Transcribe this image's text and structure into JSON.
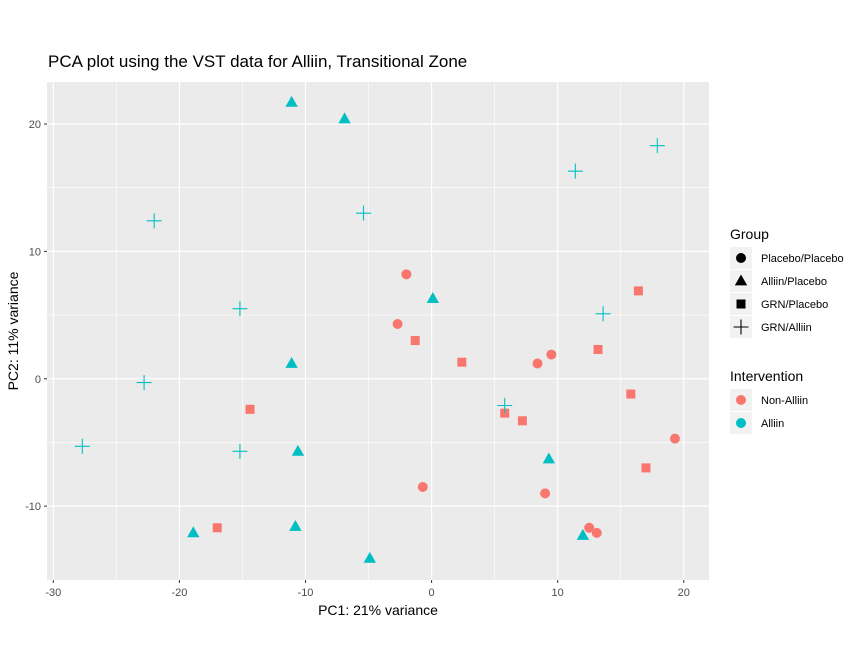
{
  "chart_data": {
    "type": "scatter",
    "title": "PCA plot using the VST data for Alliin, Transitional Zone",
    "xlabel": "PC1: 21% variance",
    "ylabel": "PC2: 11% variance",
    "xlim": [
      -30.5,
      22
    ],
    "ylim": [
      -15.8,
      23.3
    ],
    "x_ticks": [
      -30,
      -20,
      -10,
      0,
      10,
      20
    ],
    "y_ticks": [
      -10,
      0,
      10,
      20
    ],
    "x_tick_labels": [
      "-30",
      "-20",
      "-10",
      "0",
      "10",
      "20"
    ],
    "y_tick_labels": [
      "-10",
      "0",
      "10",
      "20"
    ],
    "grid": true,
    "legend_position": "right",
    "legends": {
      "shape": {
        "title": "Group",
        "items": [
          {
            "label": "Placebo/Placebo",
            "shape": "circle"
          },
          {
            "label": "Alliin/Placebo",
            "shape": "triangle"
          },
          {
            "label": "GRN/Placebo",
            "shape": "square"
          },
          {
            "label": "GRN/Alliin",
            "shape": "plus"
          }
        ]
      },
      "color": {
        "title": "Intervention",
        "items": [
          {
            "label": "Non-Alliin",
            "color": "#F8766D"
          },
          {
            "label": "Alliin",
            "color": "#00BFC4"
          }
        ]
      }
    },
    "series": [
      {
        "name": "Placebo/Placebo",
        "shape": "circle",
        "intervention": "Non-Alliin",
        "points": [
          [
            -2.0,
            8.2
          ],
          [
            -2.7,
            4.3
          ],
          [
            8.4,
            1.2
          ],
          [
            9.5,
            1.9
          ],
          [
            19.3,
            -4.7
          ],
          [
            -0.7,
            -8.5
          ],
          [
            9.0,
            -9.0
          ],
          [
            12.5,
            -11.7
          ],
          [
            13.1,
            -12.1
          ]
        ]
      },
      {
        "name": "Alliin/Placebo",
        "shape": "triangle",
        "intervention": "Alliin",
        "points": [
          [
            -11.1,
            21.7
          ],
          [
            -6.9,
            20.4
          ],
          [
            0.1,
            6.3
          ],
          [
            -11.1,
            1.2
          ],
          [
            -10.6,
            -5.7
          ],
          [
            9.3,
            -6.3
          ],
          [
            -18.9,
            -12.1
          ],
          [
            -10.8,
            -11.6
          ],
          [
            -4.9,
            -14.1
          ],
          [
            12.0,
            -12.3
          ]
        ]
      },
      {
        "name": "GRN/Placebo",
        "shape": "square",
        "intervention": "Non-Alliin",
        "points": [
          [
            16.4,
            6.9
          ],
          [
            -1.3,
            3.0
          ],
          [
            2.4,
            1.3
          ],
          [
            13.2,
            2.3
          ],
          [
            15.8,
            -1.2
          ],
          [
            5.8,
            -2.7
          ],
          [
            7.2,
            -3.3
          ],
          [
            -14.4,
            -2.4
          ],
          [
            17.0,
            -7.0
          ],
          [
            -17.0,
            -11.7
          ]
        ]
      },
      {
        "name": "GRN/Alliin",
        "shape": "plus",
        "intervention": "Alliin",
        "points": [
          [
            17.9,
            18.3
          ],
          [
            11.4,
            16.3
          ],
          [
            -5.4,
            13.0
          ],
          [
            -22.0,
            12.4
          ],
          [
            -15.2,
            5.5
          ],
          [
            13.6,
            5.1
          ],
          [
            -22.8,
            -0.3
          ],
          [
            5.8,
            -2.1
          ],
          [
            -27.7,
            -5.3
          ],
          [
            -15.2,
            -5.7
          ]
        ]
      }
    ]
  }
}
